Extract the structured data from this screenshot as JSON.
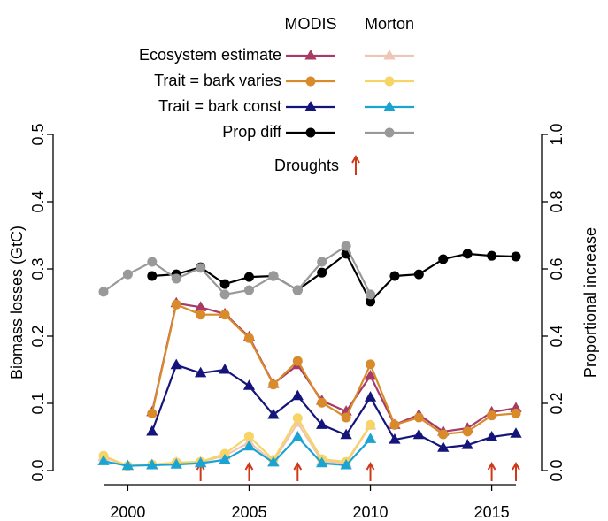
{
  "chart_data": {
    "type": "line",
    "ylabel": "Biomass losses (GtC)",
    "y2label": "Proportional increase",
    "x": [
      1999,
      2000,
      2001,
      2002,
      2003,
      2004,
      2005,
      2006,
      2007,
      2008,
      2009,
      2010,
      2011,
      2012,
      2013,
      2014,
      2015,
      2016
    ],
    "xlim": [
      1999,
      2016
    ],
    "xticks": [
      2000,
      2005,
      2010,
      2015
    ],
    "ylim": [
      0,
      0.5
    ],
    "yticks": [
      {
        "value": 0,
        "label": "0.0"
      },
      0.1,
      0.2,
      0.3,
      0.4,
      0.5
    ],
    "y2lim": [
      0,
      1
    ],
    "y2ticks": [
      {
        "value": 0,
        "label": "0.0"
      },
      0.2,
      0.4,
      0.6,
      0.8,
      {
        "value": 1,
        "label": "1.0"
      }
    ],
    "groups": [
      {
        "name": "MODIS",
        "series": [
          {
            "name": "Ecosystem estimate",
            "color": "#a83a66",
            "marker": "triangle",
            "axis": "y",
            "values": [
              null,
              null,
              0.087,
              0.249,
              0.243,
              0.233,
              0.199,
              0.129,
              0.157,
              0.104,
              0.088,
              0.141,
              0.068,
              0.083,
              0.058,
              0.063,
              0.087,
              0.093
            ]
          },
          {
            "name": "Trait = bark varies",
            "color": "#d98a2a",
            "marker": "circle",
            "axis": "y",
            "values": [
              null,
              null,
              0.085,
              0.247,
              0.232,
              0.232,
              0.197,
              0.128,
              0.163,
              0.101,
              0.079,
              0.158,
              0.068,
              0.079,
              0.054,
              0.058,
              0.082,
              0.085
            ]
          },
          {
            "name": "Trait = bark const",
            "color": "#14147a",
            "marker": "triangle",
            "axis": "y",
            "values": [
              null,
              null,
              0.058,
              0.157,
              0.145,
              0.15,
              0.126,
              0.083,
              0.111,
              0.068,
              0.053,
              0.109,
              0.046,
              0.053,
              0.034,
              0.038,
              0.05,
              0.055
            ]
          },
          {
            "name": "Prop diff",
            "color": "#000000",
            "marker": "circle",
            "axis": "y2",
            "values": [
              null,
              null,
              0.579,
              0.584,
              0.605,
              0.555,
              0.576,
              0.579,
              0.537,
              0.589,
              0.645,
              0.503,
              0.579,
              0.584,
              0.629,
              0.645,
              0.639,
              0.637
            ]
          }
        ]
      },
      {
        "name": "Morton",
        "series": [
          {
            "color": "#efc6b6",
            "marker": "triangle",
            "axis": "y",
            "values": [
              0.02,
              0.007,
              0.009,
              0.012,
              0.013,
              0.022,
              0.042,
              0.013,
              0.071,
              0.014,
              0.011,
              0.067,
              null,
              null,
              null,
              null,
              null,
              null
            ]
          },
          {
            "color": "#f6d465",
            "marker": "circle",
            "axis": "y",
            "values": [
              0.022,
              0.007,
              0.009,
              0.012,
              0.013,
              0.025,
              0.051,
              0.016,
              0.078,
              0.017,
              0.013,
              0.068,
              null,
              null,
              null,
              null,
              null,
              null
            ]
          },
          {
            "color": "#1ba3d3",
            "marker": "triangle",
            "axis": "y",
            "values": [
              0.014,
              0.007,
              0.008,
              0.009,
              0.011,
              0.016,
              0.036,
              0.012,
              0.05,
              0.011,
              0.008,
              0.047,
              null,
              null,
              null,
              null,
              null,
              null
            ]
          },
          {
            "color": "#999999",
            "marker": "circle",
            "axis": "y2",
            "values": [
              0.532,
              0.584,
              0.621,
              0.571,
              0.603,
              0.524,
              0.537,
              0.579,
              0.537,
              0.621,
              0.668,
              0.524,
              null,
              null,
              null,
              null,
              null,
              null
            ]
          }
        ]
      }
    ],
    "droughts": {
      "label": "Droughts",
      "color": "#d0381a",
      "x": [
        2003,
        2005,
        2007,
        2010,
        2015,
        2016
      ]
    }
  }
}
